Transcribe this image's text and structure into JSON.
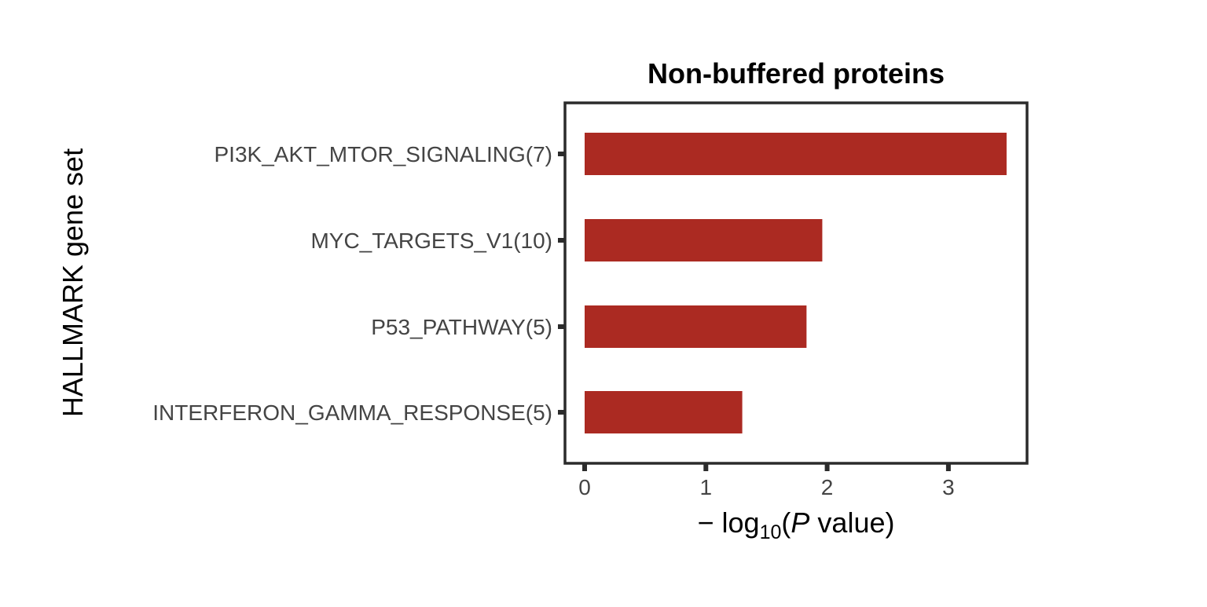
{
  "chart_data": {
    "type": "bar",
    "orientation": "horizontal",
    "title": "Non-buffered proteins",
    "xlabel": {
      "prefix": "− log",
      "sub": "10",
      "open": "(",
      "italic": "P",
      "rest": " value)"
    },
    "ylabel": "HALLMARK gene set",
    "categories": [
      "PI3K_AKT_MTOR_SIGNALING(7)",
      "MYC_TARGETS_V1(10)",
      "P53_PATHWAY(5)",
      "INTERFERON_GAMMA_RESPONSE(5)"
    ],
    "values": [
      3.48,
      1.96,
      1.83,
      1.3
    ],
    "xticks": [
      "0",
      "1",
      "2",
      "3"
    ],
    "xlim": [
      -0.16,
      3.65
    ],
    "grid": false,
    "bar_color": "#AB2A22"
  }
}
